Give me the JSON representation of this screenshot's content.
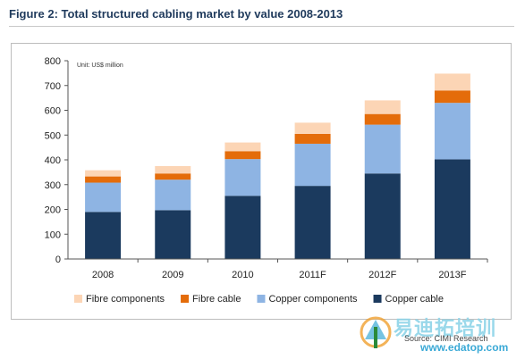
{
  "figure": {
    "title": "Figure 2: Total structured cabling market by value 2008-2013",
    "unit_note": "Unit: US$ million",
    "source": "Source: CIMI Research"
  },
  "watermark": {
    "text_cn": "易迪拓培训",
    "url": "www.edatop.com"
  },
  "chart_data": {
    "type": "bar",
    "stacked": true,
    "categories": [
      "2008",
      "2009",
      "2010",
      "2011F",
      "2012F",
      "2013F"
    ],
    "series": [
      {
        "name": "Copper cable",
        "color": "#1b3a5e",
        "values": [
          190,
          197,
          255,
          295,
          345,
          402
        ]
      },
      {
        "name": "Copper components",
        "color": "#8eb4e3",
        "values": [
          118,
          123,
          148,
          170,
          197,
          228
        ]
      },
      {
        "name": "Fibre cable",
        "color": "#e46c0a",
        "values": [
          25,
          25,
          32,
          40,
          43,
          50
        ]
      },
      {
        "name": "Fibre components",
        "color": "#fcd5b5",
        "values": [
          25,
          30,
          35,
          45,
          55,
          68
        ]
      }
    ],
    "legend_order": [
      "Fibre components",
      "Fibre cable",
      "Copper components",
      "Copper cable"
    ],
    "ylim": [
      0,
      800
    ],
    "yticks": [
      "0",
      "100",
      "200",
      "300",
      "400",
      "500",
      "600",
      "700",
      "800"
    ],
    "legend_position": "bottom",
    "grid": false
  }
}
